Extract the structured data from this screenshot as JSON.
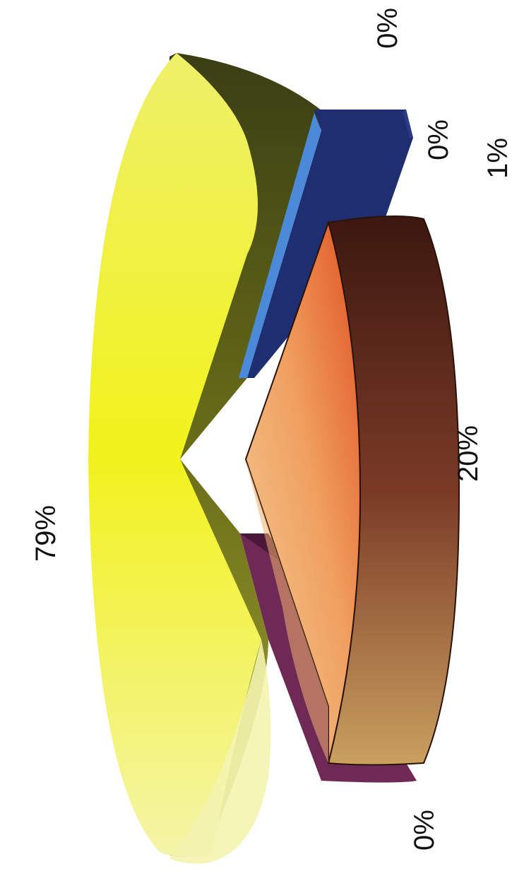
{
  "chart_data": {
    "type": "pie",
    "style": "3d-exploded, rotated 90 degrees counter-clockwise",
    "title": "",
    "slices": [
      {
        "value": 79,
        "label": "79%",
        "color": "#e8e61a"
      },
      {
        "value": 20,
        "label": "20%",
        "color": "#b0703a"
      },
      {
        "value": 0,
        "label": "0%",
        "color": "#6e2a55"
      },
      {
        "value": 0,
        "label": "0%",
        "color": "#1f2e70"
      },
      {
        "value": 1,
        "label": "1%",
        "color": "#2a3a86"
      },
      {
        "value": 0,
        "label": "0%",
        "color": "#4a8ad8"
      }
    ]
  }
}
